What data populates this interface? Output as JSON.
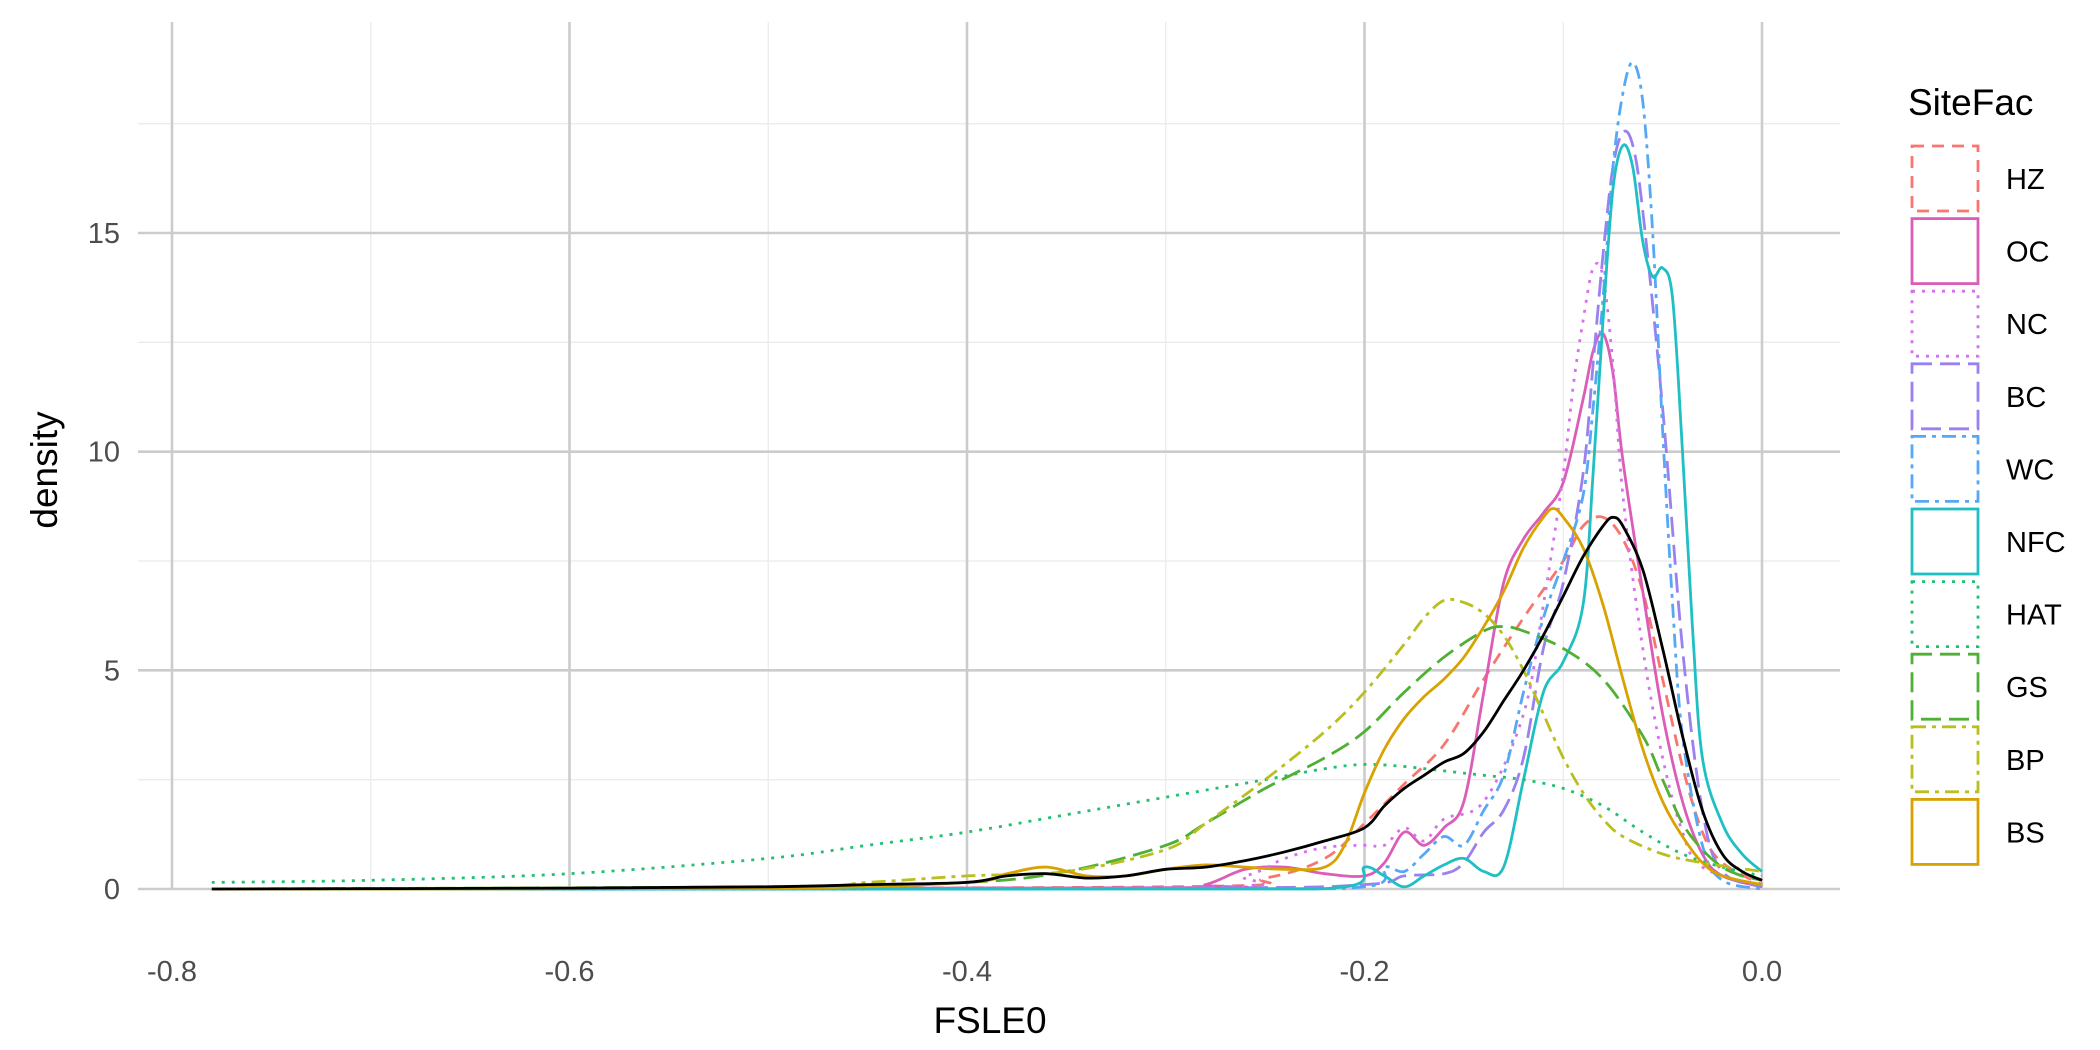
{
  "chart_data": {
    "type": "line",
    "title": "",
    "xlabel": "FSLE0",
    "ylabel": "density",
    "xlim": [
      -0.8,
      0.0
    ],
    "ylim": [
      0,
      19
    ],
    "xticks": [
      -0.8,
      -0.6,
      -0.4,
      -0.2,
      0.0
    ],
    "xtick_labels": [
      "-0.8",
      "-0.6",
      "-0.4",
      "-0.2",
      "0.0"
    ],
    "yticks": [
      0,
      5,
      10,
      15
    ],
    "ytick_labels": [
      "0",
      "5",
      "10",
      "15"
    ],
    "grid": true,
    "legend": {
      "title": "SiteFac",
      "position": "right"
    },
    "series": [
      {
        "name": "HZ",
        "color": "#F8766D",
        "dash": "dashed",
        "points": [
          [
            -0.78,
            0
          ],
          [
            -0.3,
            0.05
          ],
          [
            -0.25,
            0.25
          ],
          [
            -0.22,
            0.7
          ],
          [
            -0.2,
            1.5
          ],
          [
            -0.18,
            2.4
          ],
          [
            -0.16,
            3.3
          ],
          [
            -0.14,
            4.8
          ],
          [
            -0.12,
            6.2
          ],
          [
            -0.1,
            7.5
          ],
          [
            -0.09,
            8.3
          ],
          [
            -0.08,
            8.5
          ],
          [
            -0.07,
            8.0
          ],
          [
            -0.06,
            6.8
          ],
          [
            -0.05,
            4.8
          ],
          [
            -0.04,
            2.8
          ],
          [
            -0.03,
            1.3
          ],
          [
            -0.02,
            0.6
          ],
          [
            0,
            0.1
          ]
        ]
      },
      {
        "name": "OC",
        "color": "#DB5DB8",
        "dash": "solid",
        "points": [
          [
            -0.78,
            0
          ],
          [
            -0.3,
            0.03
          ],
          [
            -0.28,
            0.1
          ],
          [
            -0.26,
            0.45
          ],
          [
            -0.24,
            0.5
          ],
          [
            -0.22,
            0.35
          ],
          [
            -0.2,
            0.3
          ],
          [
            -0.19,
            0.6
          ],
          [
            -0.18,
            1.3
          ],
          [
            -0.17,
            1.0
          ],
          [
            -0.16,
            1.4
          ],
          [
            -0.15,
            2.0
          ],
          [
            -0.14,
            4.5
          ],
          [
            -0.13,
            7.0
          ],
          [
            -0.12,
            8.0
          ],
          [
            -0.11,
            8.6
          ],
          [
            -0.1,
            9.3
          ],
          [
            -0.09,
            11.2
          ],
          [
            -0.085,
            12.3
          ],
          [
            -0.08,
            12.7
          ],
          [
            -0.075,
            11.8
          ],
          [
            -0.07,
            9.8
          ],
          [
            -0.06,
            6.8
          ],
          [
            -0.05,
            4.0
          ],
          [
            -0.04,
            2.0
          ],
          [
            -0.03,
            0.8
          ],
          [
            -0.02,
            0.3
          ],
          [
            0,
            0.05
          ]
        ]
      },
      {
        "name": "NC",
        "color": "#D770F0",
        "dash": "dotted",
        "points": [
          [
            -0.78,
            0
          ],
          [
            -0.3,
            0.02
          ],
          [
            -0.26,
            0.3
          ],
          [
            -0.24,
            0.7
          ],
          [
            -0.22,
            0.95
          ],
          [
            -0.2,
            1.0
          ],
          [
            -0.19,
            1.0
          ],
          [
            -0.18,
            1.4
          ],
          [
            -0.17,
            1.1
          ],
          [
            -0.16,
            1.6
          ],
          [
            -0.14,
            2.0
          ],
          [
            -0.12,
            4.0
          ],
          [
            -0.11,
            6.5
          ],
          [
            -0.1,
            9.5
          ],
          [
            -0.095,
            11.5
          ],
          [
            -0.09,
            13.0
          ],
          [
            -0.085,
            14.2
          ],
          [
            -0.08,
            14.0
          ],
          [
            -0.075,
            12.0
          ],
          [
            -0.07,
            9.0
          ],
          [
            -0.06,
            5.5
          ],
          [
            -0.05,
            3.0
          ],
          [
            -0.04,
            1.3
          ],
          [
            -0.03,
            0.5
          ],
          [
            0,
            0.05
          ]
        ]
      },
      {
        "name": "BC",
        "color": "#9B80F0",
        "dash": "longdash",
        "points": [
          [
            -0.78,
            0
          ],
          [
            -0.3,
            0.02
          ],
          [
            -0.2,
            0.1
          ],
          [
            -0.18,
            0.3
          ],
          [
            -0.16,
            0.35
          ],
          [
            -0.15,
            0.6
          ],
          [
            -0.14,
            1.3
          ],
          [
            -0.13,
            1.8
          ],
          [
            -0.12,
            3.0
          ],
          [
            -0.11,
            5.5
          ],
          [
            -0.1,
            7.0
          ],
          [
            -0.09,
            9.5
          ],
          [
            -0.085,
            12.0
          ],
          [
            -0.08,
            14.5
          ],
          [
            -0.075,
            16.5
          ],
          [
            -0.07,
            17.3
          ],
          [
            -0.065,
            17.0
          ],
          [
            -0.06,
            15.5
          ],
          [
            -0.05,
            11.0
          ],
          [
            -0.04,
            5.5
          ],
          [
            -0.03,
            1.8
          ],
          [
            -0.02,
            0.4
          ],
          [
            0,
            0.05
          ]
        ]
      },
      {
        "name": "WC",
        "color": "#56A8F5",
        "dash": "twodash",
        "points": [
          [
            -0.78,
            0
          ],
          [
            -0.3,
            0.01
          ],
          [
            -0.2,
            0.05
          ],
          [
            -0.19,
            0.5
          ],
          [
            -0.18,
            0.4
          ],
          [
            -0.17,
            0.8
          ],
          [
            -0.16,
            1.2
          ],
          [
            -0.15,
            1.0
          ],
          [
            -0.14,
            1.8
          ],
          [
            -0.13,
            2.6
          ],
          [
            -0.12,
            4.5
          ],
          [
            -0.11,
            6.2
          ],
          [
            -0.1,
            7.5
          ],
          [
            -0.09,
            9.0
          ],
          [
            -0.085,
            11.0
          ],
          [
            -0.08,
            13.5
          ],
          [
            -0.075,
            16.5
          ],
          [
            -0.07,
            18.2
          ],
          [
            -0.065,
            18.9
          ],
          [
            -0.06,
            18.0
          ],
          [
            -0.055,
            15.0
          ],
          [
            -0.05,
            10.5
          ],
          [
            -0.045,
            6.5
          ],
          [
            -0.04,
            3.5
          ],
          [
            -0.03,
            1.0
          ],
          [
            -0.02,
            0.2
          ],
          [
            0,
            0.0
          ]
        ]
      },
      {
        "name": "NFC",
        "color": "#1FBFC4",
        "dash": "solid",
        "points": [
          [
            -0.78,
            0
          ],
          [
            -0.3,
            0.0
          ],
          [
            -0.21,
            0.05
          ],
          [
            -0.2,
            0.5
          ],
          [
            -0.19,
            0.3
          ],
          [
            -0.18,
            0.05
          ],
          [
            -0.17,
            0.3
          ],
          [
            -0.16,
            0.55
          ],
          [
            -0.15,
            0.7
          ],
          [
            -0.14,
            0.4
          ],
          [
            -0.13,
            0.5
          ],
          [
            -0.12,
            2.5
          ],
          [
            -0.11,
            4.5
          ],
          [
            -0.1,
            5.2
          ],
          [
            -0.09,
            6.5
          ],
          [
            -0.085,
            9.5
          ],
          [
            -0.08,
            13.0
          ],
          [
            -0.075,
            16.0
          ],
          [
            -0.07,
            17.0
          ],
          [
            -0.065,
            16.5
          ],
          [
            -0.06,
            14.8
          ],
          [
            -0.055,
            14.0
          ],
          [
            -0.05,
            14.2
          ],
          [
            -0.045,
            13.5
          ],
          [
            -0.04,
            10.0
          ],
          [
            -0.035,
            6.0
          ],
          [
            -0.03,
            3.0
          ],
          [
            -0.02,
            1.5
          ],
          [
            -0.01,
            0.8
          ],
          [
            0,
            0.4
          ]
        ]
      },
      {
        "name": "HAT",
        "color": "#20C070",
        "dash": "dotted",
        "points": [
          [
            -0.78,
            0.15
          ],
          [
            -0.7,
            0.2
          ],
          [
            -0.6,
            0.35
          ],
          [
            -0.5,
            0.7
          ],
          [
            -0.45,
            1.0
          ],
          [
            -0.4,
            1.3
          ],
          [
            -0.35,
            1.7
          ],
          [
            -0.3,
            2.1
          ],
          [
            -0.25,
            2.5
          ],
          [
            -0.22,
            2.75
          ],
          [
            -0.2,
            2.85
          ],
          [
            -0.18,
            2.8
          ],
          [
            -0.16,
            2.7
          ],
          [
            -0.14,
            2.6
          ],
          [
            -0.12,
            2.5
          ],
          [
            -0.1,
            2.3
          ],
          [
            -0.08,
            1.9
          ],
          [
            -0.06,
            1.3
          ],
          [
            -0.04,
            0.8
          ],
          [
            -0.02,
            0.5
          ],
          [
            0,
            0.3
          ]
        ]
      },
      {
        "name": "GS",
        "color": "#4FB033",
        "dash": "longdash",
        "points": [
          [
            -0.78,
            0
          ],
          [
            -0.5,
            0.05
          ],
          [
            -0.4,
            0.15
          ],
          [
            -0.35,
            0.4
          ],
          [
            -0.3,
            1.0
          ],
          [
            -0.28,
            1.5
          ],
          [
            -0.25,
            2.3
          ],
          [
            -0.22,
            3.0
          ],
          [
            -0.2,
            3.6
          ],
          [
            -0.18,
            4.5
          ],
          [
            -0.16,
            5.3
          ],
          [
            -0.14,
            5.9
          ],
          [
            -0.13,
            6.0
          ],
          [
            -0.12,
            5.9
          ],
          [
            -0.1,
            5.5
          ],
          [
            -0.08,
            4.8
          ],
          [
            -0.06,
            3.5
          ],
          [
            -0.05,
            2.5
          ],
          [
            -0.04,
            1.5
          ],
          [
            -0.03,
            0.9
          ],
          [
            -0.02,
            0.5
          ],
          [
            -0.01,
            0.3
          ],
          [
            0,
            0.2
          ]
        ]
      },
      {
        "name": "BP",
        "color": "#B8BF1E",
        "dash": "twodash",
        "points": [
          [
            -0.78,
            0
          ],
          [
            -0.5,
            0.05
          ],
          [
            -0.45,
            0.15
          ],
          [
            -0.4,
            0.3
          ],
          [
            -0.35,
            0.4
          ],
          [
            -0.3,
            0.9
          ],
          [
            -0.28,
            1.5
          ],
          [
            -0.25,
            2.5
          ],
          [
            -0.22,
            3.6
          ],
          [
            -0.2,
            4.5
          ],
          [
            -0.18,
            5.6
          ],
          [
            -0.17,
            6.2
          ],
          [
            -0.16,
            6.6
          ],
          [
            -0.15,
            6.55
          ],
          [
            -0.14,
            6.3
          ],
          [
            -0.13,
            5.8
          ],
          [
            -0.12,
            5.0
          ],
          [
            -0.11,
            4.0
          ],
          [
            -0.1,
            3.0
          ],
          [
            -0.09,
            2.2
          ],
          [
            -0.08,
            1.6
          ],
          [
            -0.07,
            1.2
          ],
          [
            -0.05,
            0.8
          ],
          [
            -0.03,
            0.6
          ],
          [
            0,
            0.4
          ]
        ]
      },
      {
        "name": "BS",
        "color": "#D8A200",
        "dash": "solid",
        "points": [
          [
            -0.78,
            0
          ],
          [
            -0.5,
            0.02
          ],
          [
            -0.4,
            0.15
          ],
          [
            -0.38,
            0.35
          ],
          [
            -0.36,
            0.5
          ],
          [
            -0.34,
            0.3
          ],
          [
            -0.32,
            0.3
          ],
          [
            -0.3,
            0.45
          ],
          [
            -0.28,
            0.55
          ],
          [
            -0.26,
            0.5
          ],
          [
            -0.24,
            0.45
          ],
          [
            -0.22,
            0.5
          ],
          [
            -0.21,
            1.0
          ],
          [
            -0.2,
            2.2
          ],
          [
            -0.19,
            3.2
          ],
          [
            -0.18,
            3.9
          ],
          [
            -0.17,
            4.4
          ],
          [
            -0.16,
            4.8
          ],
          [
            -0.15,
            5.3
          ],
          [
            -0.14,
            6.0
          ],
          [
            -0.13,
            6.8
          ],
          [
            -0.12,
            7.8
          ],
          [
            -0.11,
            8.5
          ],
          [
            -0.105,
            8.7
          ],
          [
            -0.1,
            8.5
          ],
          [
            -0.09,
            7.8
          ],
          [
            -0.08,
            6.5
          ],
          [
            -0.07,
            4.8
          ],
          [
            -0.06,
            3.2
          ],
          [
            -0.05,
            2.0
          ],
          [
            -0.04,
            1.2
          ],
          [
            -0.03,
            0.6
          ],
          [
            -0.02,
            0.3
          ],
          [
            0,
            0.1
          ]
        ]
      },
      {
        "name": "",
        "color": "#000000",
        "dash": "solid",
        "points": [
          [
            -0.78,
            0
          ],
          [
            -0.6,
            0.02
          ],
          [
            -0.5,
            0.05
          ],
          [
            -0.45,
            0.1
          ],
          [
            -0.4,
            0.15
          ],
          [
            -0.38,
            0.3
          ],
          [
            -0.36,
            0.35
          ],
          [
            -0.34,
            0.25
          ],
          [
            -0.32,
            0.3
          ],
          [
            -0.3,
            0.45
          ],
          [
            -0.28,
            0.5
          ],
          [
            -0.26,
            0.65
          ],
          [
            -0.24,
            0.85
          ],
          [
            -0.22,
            1.1
          ],
          [
            -0.2,
            1.4
          ],
          [
            -0.19,
            1.9
          ],
          [
            -0.18,
            2.3
          ],
          [
            -0.17,
            2.6
          ],
          [
            -0.16,
            2.9
          ],
          [
            -0.15,
            3.1
          ],
          [
            -0.14,
            3.6
          ],
          [
            -0.13,
            4.3
          ],
          [
            -0.12,
            5.0
          ],
          [
            -0.11,
            5.8
          ],
          [
            -0.1,
            6.7
          ],
          [
            -0.09,
            7.6
          ],
          [
            -0.08,
            8.3
          ],
          [
            -0.075,
            8.5
          ],
          [
            -0.07,
            8.3
          ],
          [
            -0.06,
            7.3
          ],
          [
            -0.05,
            5.5
          ],
          [
            -0.04,
            3.5
          ],
          [
            -0.03,
            1.8
          ],
          [
            -0.02,
            0.8
          ],
          [
            -0.01,
            0.4
          ],
          [
            0,
            0.2
          ]
        ]
      }
    ]
  }
}
